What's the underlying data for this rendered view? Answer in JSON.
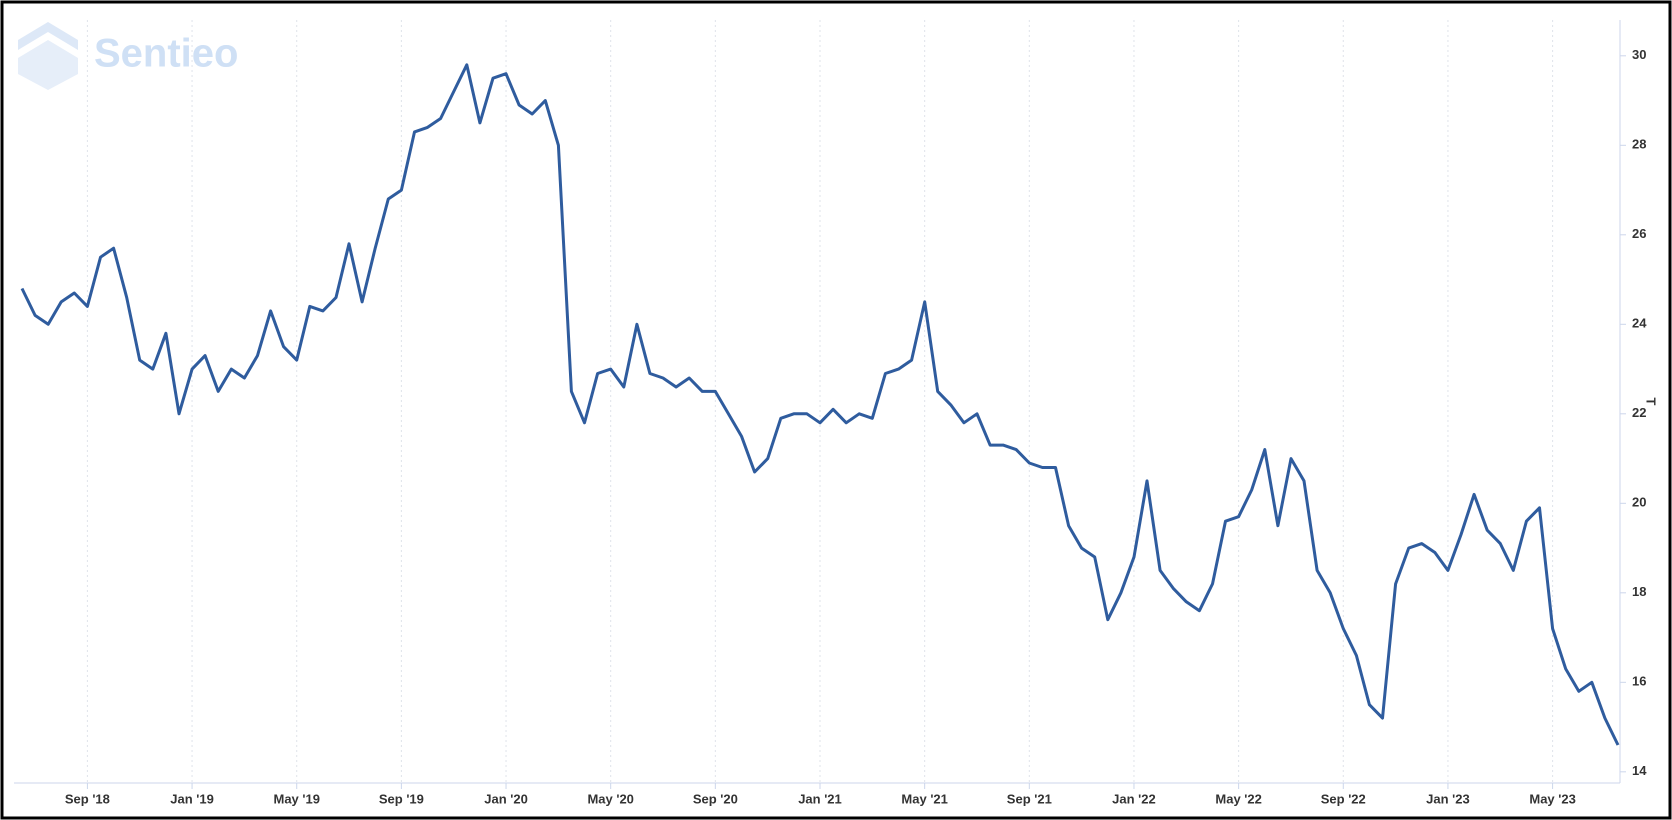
{
  "chart_data": {
    "type": "line",
    "watermark": "Sentieo",
    "y_label": "T",
    "categories": [
      null,
      null,
      null,
      null,
      null,
      "Sep '18",
      null,
      null,
      null,
      null,
      null,
      null,
      null,
      "Jan '19",
      null,
      null,
      null,
      null,
      null,
      null,
      null,
      "May '19",
      null,
      null,
      null,
      null,
      null,
      null,
      null,
      "Sep '19",
      null,
      null,
      null,
      null,
      null,
      null,
      null,
      "Jan '20",
      null,
      null,
      null,
      null,
      null,
      null,
      null,
      "May '20",
      null,
      null,
      null,
      null,
      null,
      null,
      null,
      "Sep '20",
      null,
      null,
      null,
      null,
      null,
      null,
      null,
      "Jan '21",
      null,
      null,
      null,
      null,
      null,
      null,
      null,
      "May '21",
      null,
      null,
      null,
      null,
      null,
      null,
      null,
      "Sep '21",
      null,
      null,
      null,
      null,
      null,
      null,
      null,
      "Jan '22",
      null,
      null,
      null,
      null,
      null,
      null,
      null,
      "May '22",
      null,
      null,
      null,
      null,
      null,
      null,
      null,
      "Sep '22",
      null,
      null,
      null,
      null,
      null,
      null,
      null,
      "Jan '23",
      null,
      null,
      null,
      null,
      null,
      null,
      null,
      "May '23",
      null,
      null,
      null,
      null,
      null
    ],
    "series": [
      {
        "name": "T",
        "color": "#2f5c9e",
        "values": [
          24.8,
          24.2,
          24.0,
          24.5,
          24.7,
          24.4,
          25.5,
          25.7,
          24.6,
          23.2,
          23.0,
          23.8,
          22.0,
          23.0,
          23.3,
          22.5,
          23.0,
          22.8,
          23.3,
          24.3,
          23.5,
          23.2,
          24.4,
          24.3,
          24.6,
          25.8,
          24.5,
          25.7,
          26.8,
          27.0,
          28.3,
          28.4,
          28.6,
          29.2,
          29.8,
          28.5,
          29.5,
          29.6,
          28.9,
          28.7,
          29.0,
          28.0,
          22.5,
          21.8,
          22.9,
          23.0,
          22.6,
          24.0,
          22.9,
          22.8,
          22.6,
          22.8,
          22.5,
          22.5,
          22.0,
          21.5,
          20.7,
          21.0,
          21.9,
          22.0,
          22.0,
          21.8,
          22.1,
          21.8,
          22.0,
          21.9,
          22.9,
          23.0,
          23.2,
          24.5,
          22.5,
          22.2,
          21.8,
          22.0,
          21.3,
          21.3,
          21.2,
          20.9,
          20.8,
          20.8,
          19.5,
          19.0,
          18.8,
          17.4,
          18.0,
          18.8,
          20.5,
          18.5,
          18.1,
          17.8,
          17.6,
          18.2,
          19.6,
          19.7,
          20.3,
          21.2,
          19.5,
          21.0,
          20.5,
          18.5,
          18.0,
          17.2,
          16.6,
          15.5,
          15.2,
          18.2,
          19.0,
          19.1,
          18.9,
          18.5,
          19.3,
          20.2,
          19.4,
          19.1,
          18.5,
          19.6,
          19.9,
          17.2,
          16.3,
          15.8,
          16.0,
          15.2,
          14.6
        ]
      }
    ],
    "ylim": [
      13.75,
      30.8
    ],
    "yticks": [
      14,
      16,
      18,
      20,
      22,
      24,
      26,
      28,
      30
    ],
    "y_axis_side": "right",
    "x_grid": true
  }
}
